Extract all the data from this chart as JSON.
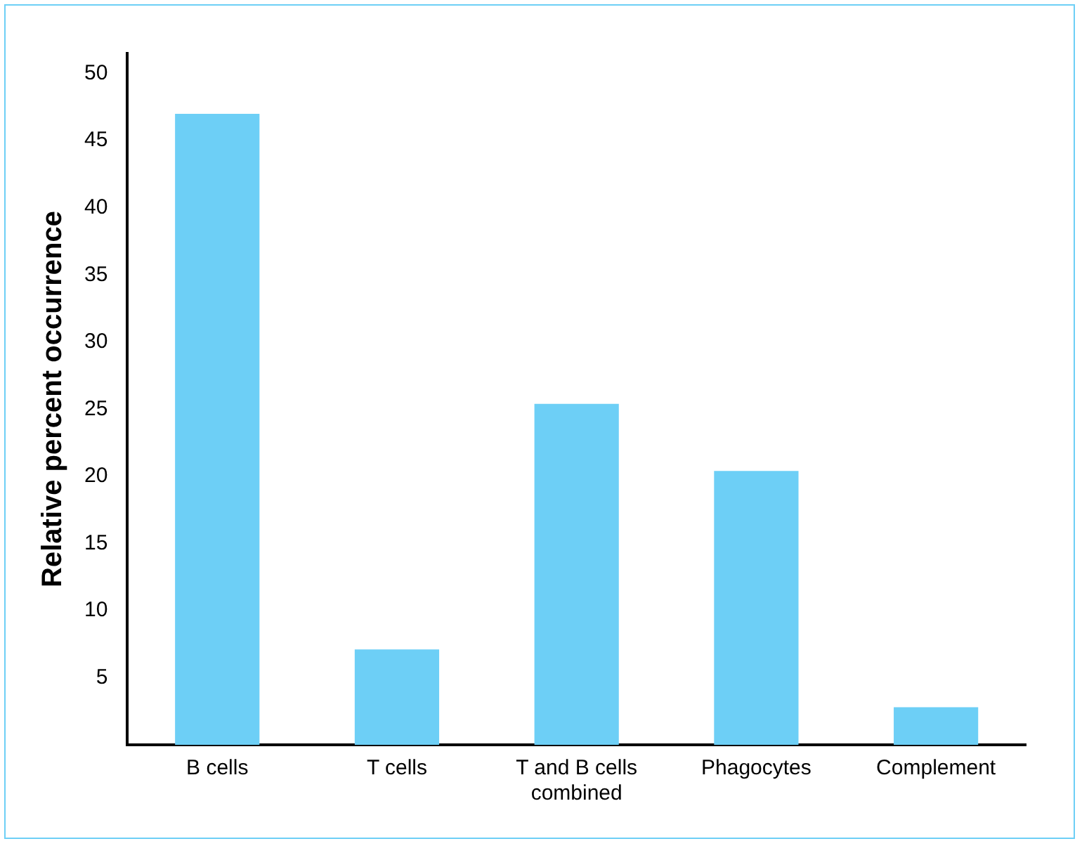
{
  "chart_data": {
    "type": "bar",
    "ylabel": "Relative percent occurrence",
    "categories": [
      "B cells",
      "T cells",
      "T and B cells combined",
      "Phagocytes",
      "Complement"
    ],
    "values": [
      47,
      7.1,
      25.4,
      20.4,
      2.8
    ],
    "color": "#6dcff6",
    "ylim": [
      0,
      51.5
    ],
    "yticks": [
      5,
      10,
      15,
      20,
      25,
      30,
      35,
      40,
      45,
      50
    ],
    "grid": false,
    "legend": false
  }
}
